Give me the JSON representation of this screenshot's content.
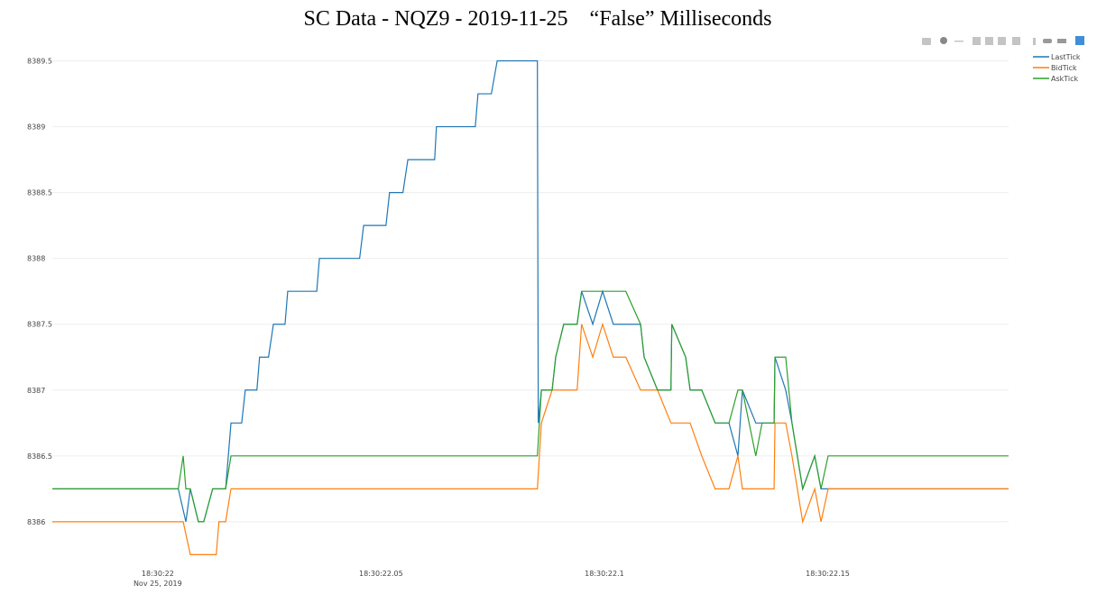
{
  "chart_data": {
    "type": "line",
    "title": "SC Data - NQZ9 - 2019-11-25    “False” Milliseconds",
    "xlim": [
      21.9764,
      22.1905
    ],
    "xticks": [
      {
        "value": 22,
        "label": "18:30:22"
      },
      {
        "value": 22.05,
        "label": "18:30:22.05"
      },
      {
        "value": 22.1,
        "label": "18:30:22.1"
      },
      {
        "value": 22.15,
        "label": "18:30:22.15"
      }
    ],
    "x_date_label": "Nov 25, 2019",
    "ylim": [
      8385.65,
      8389.62
    ],
    "yticks": [
      8386,
      8386.5,
      8387,
      8387.5,
      8388,
      8388.5,
      8389,
      8389.5
    ],
    "grid": true,
    "legend": "top-right",
    "series": [
      {
        "name": "LastTick",
        "color": "#1f77b4",
        "x": [
          21.9764,
          22.0046,
          22.0063,
          22.0073,
          22.0091,
          22.0103,
          22.0123,
          22.0152,
          22.0164,
          22.0188,
          22.0196,
          22.0222,
          22.0228,
          22.0248,
          22.0259,
          22.0285,
          22.0291,
          22.0356,
          22.0362,
          22.0452,
          22.0461,
          22.0511,
          22.0519,
          22.0549,
          22.056,
          22.062,
          22.0624,
          22.0711,
          22.0717,
          22.0747,
          22.076,
          22.085,
          22.0852,
          22.0859,
          22.0883,
          22.0891,
          22.0909,
          22.0939,
          22.0949,
          22.0974,
          22.0996,
          22.102,
          22.1048,
          22.1081,
          22.1089,
          22.1119,
          22.1149,
          22.1151,
          22.1182,
          22.1192,
          22.1218,
          22.1248,
          22.1279,
          22.1299,
          22.1309,
          22.1339,
          22.138,
          22.1382,
          22.1406,
          22.142,
          22.1444,
          22.1471,
          22.1485,
          22.1501,
          22.1905
        ],
        "values": [
          8386.25,
          8386.25,
          8386,
          8386.25,
          8386,
          8386,
          8386.25,
          8386.25,
          8386.75,
          8386.75,
          8387,
          8387,
          8387.25,
          8387.25,
          8387.5,
          8387.5,
          8387.75,
          8387.75,
          8388,
          8388,
          8388.25,
          8388.25,
          8388.5,
          8388.5,
          8388.75,
          8388.75,
          8389,
          8389,
          8389.25,
          8389.25,
          8389.5,
          8389.5,
          8386.75,
          8387,
          8387,
          8387.25,
          8387.5,
          8387.5,
          8387.75,
          8387.5,
          8387.75,
          8387.5,
          8387.5,
          8387.5,
          8387.25,
          8387,
          8387,
          8387.5,
          8387.25,
          8387,
          8387,
          8386.75,
          8386.75,
          8386.5,
          8387,
          8386.75,
          8386.75,
          8387.25,
          8387,
          8386.75,
          8386.25,
          8386.5,
          8386.25,
          8386.25,
          8386.25
        ]
      },
      {
        "name": "BidTick",
        "color": "#ff7f0e",
        "x": [
          21.9764,
          22.0046,
          22.0057,
          22.0073,
          22.0091,
          22.0131,
          22.0137,
          22.0152,
          22.0164,
          22.085,
          22.0859,
          22.0883,
          22.0939,
          22.0949,
          22.0974,
          22.0996,
          22.102,
          22.1048,
          22.1081,
          22.1119,
          22.1149,
          22.1182,
          22.1192,
          22.1218,
          22.1248,
          22.1279,
          22.1299,
          22.1309,
          22.1339,
          22.138,
          22.1382,
          22.1406,
          22.142,
          22.1444,
          22.1471,
          22.1485,
          22.1501,
          22.1905
        ],
        "values": [
          8386,
          8386,
          8386,
          8385.75,
          8385.75,
          8385.75,
          8386,
          8386,
          8386.25,
          8386.25,
          8386.75,
          8387,
          8387,
          8387.5,
          8387.25,
          8387.5,
          8387.25,
          8387.25,
          8387,
          8387,
          8386.75,
          8386.75,
          8386.75,
          8386.5,
          8386.25,
          8386.25,
          8386.5,
          8386.25,
          8386.25,
          8386.25,
          8386.75,
          8386.75,
          8386.5,
          8386,
          8386.25,
          8386,
          8386.25,
          8386.25
        ]
      },
      {
        "name": "AskTick",
        "color": "#2ca02c",
        "x": [
          21.9764,
          22.0046,
          22.0057,
          22.0063,
          22.0073,
          22.0091,
          22.0103,
          22.0123,
          22.0152,
          22.0164,
          22.085,
          22.0859,
          22.0883,
          22.0891,
          22.0909,
          22.0939,
          22.0949,
          22.1048,
          22.1081,
          22.1089,
          22.1119,
          22.1149,
          22.1151,
          22.1182,
          22.1192,
          22.1218,
          22.1248,
          22.1279,
          22.1299,
          22.1309,
          22.1339,
          22.1353,
          22.138,
          22.1382,
          22.1406,
          22.142,
          22.1444,
          22.1471,
          22.1485,
          22.1501,
          22.1905
        ],
        "values": [
          8386.25,
          8386.25,
          8386.5,
          8386.25,
          8386.25,
          8386,
          8386,
          8386.25,
          8386.25,
          8386.5,
          8386.5,
          8387,
          8387,
          8387.25,
          8387.5,
          8387.5,
          8387.75,
          8387.75,
          8387.5,
          8387.25,
          8387,
          8387,
          8387.5,
          8387.25,
          8387,
          8387,
          8386.75,
          8386.75,
          8387,
          8387,
          8386.5,
          8386.75,
          8386.75,
          8387.25,
          8387.25,
          8386.75,
          8386.25,
          8386.5,
          8386.25,
          8386.5,
          8386.5
        ]
      }
    ]
  }
}
